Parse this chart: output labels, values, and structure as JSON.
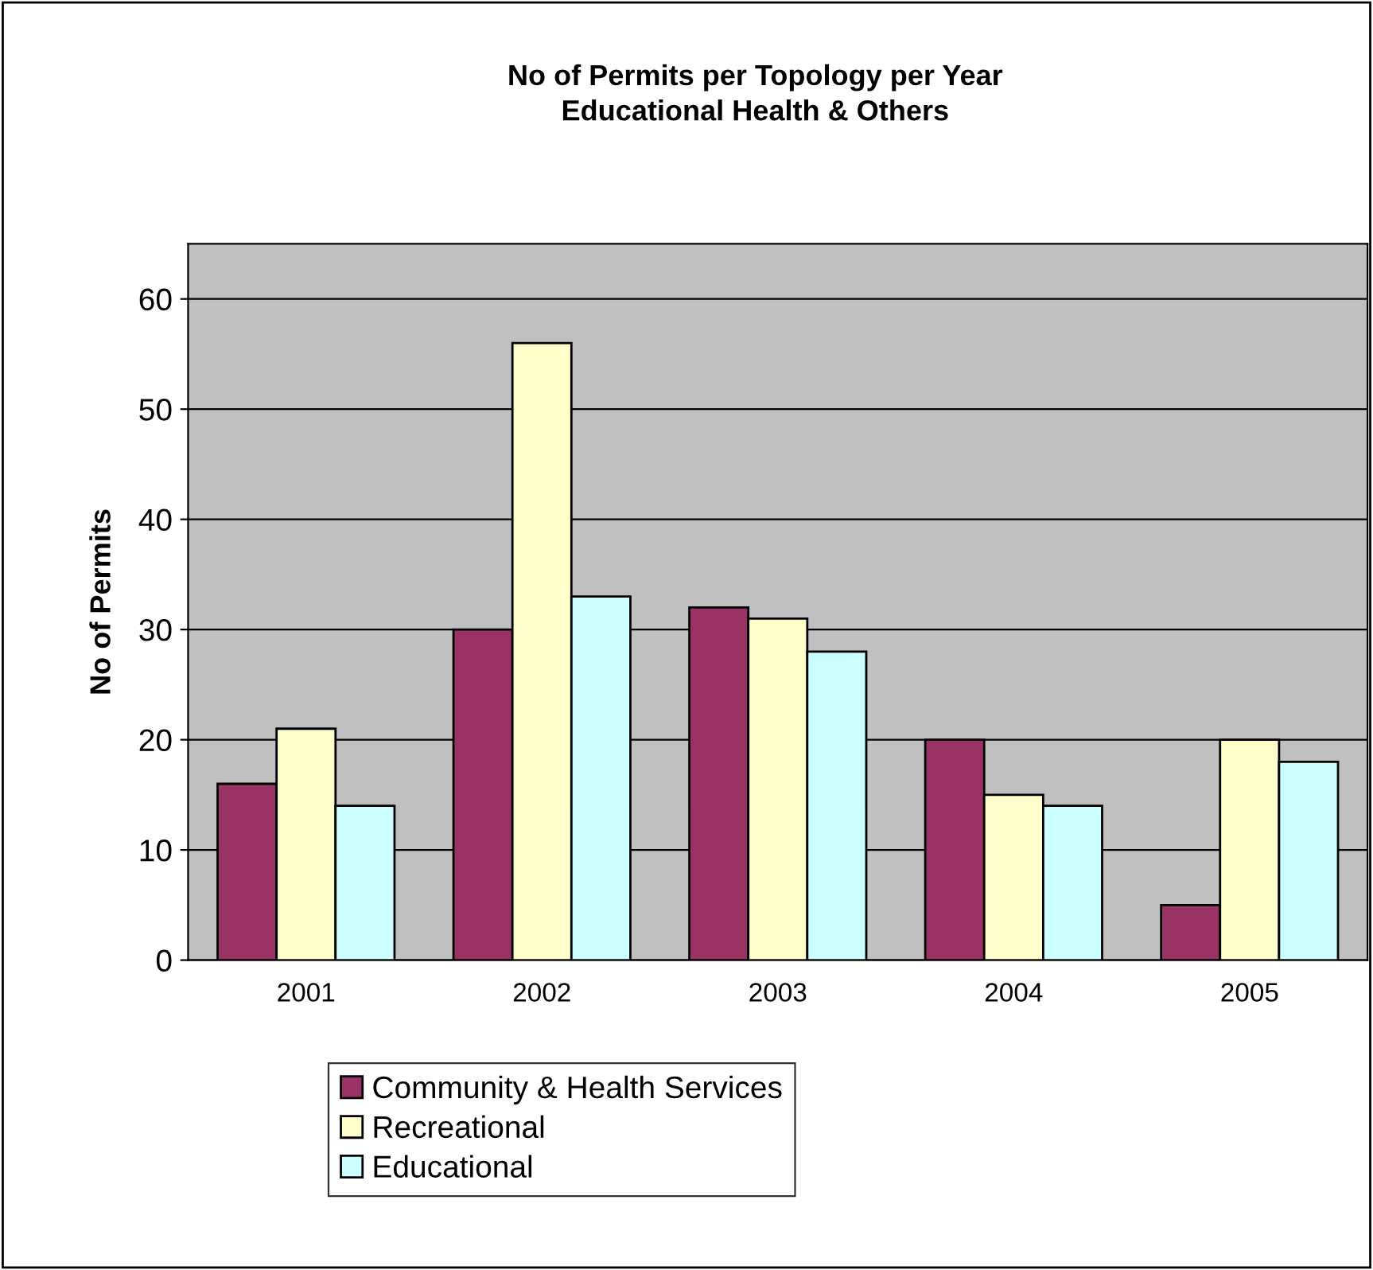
{
  "chart_data": {
    "type": "bar",
    "title": "No of Permits per Topology per Year\nEducational Health & Others",
    "ylabel": "No of Permits",
    "categories": [
      "2001",
      "2002",
      "2003",
      "2004",
      "2005"
    ],
    "series": [
      {
        "name": "Community & Health Services",
        "color": "#993366",
        "values": [
          16,
          30,
          32,
          20,
          5
        ]
      },
      {
        "name": "Recreational",
        "color": "#ffffcc",
        "values": [
          21,
          56,
          31,
          15,
          20
        ]
      },
      {
        "name": "Educational",
        "color": "#ccffff",
        "values": [
          14,
          33,
          28,
          14,
          18
        ]
      }
    ],
    "ylim": [
      0,
      65
    ],
    "yticks": [
      0,
      10,
      20,
      30,
      40,
      50,
      60
    ],
    "grid": "y",
    "legend": "bottom"
  }
}
